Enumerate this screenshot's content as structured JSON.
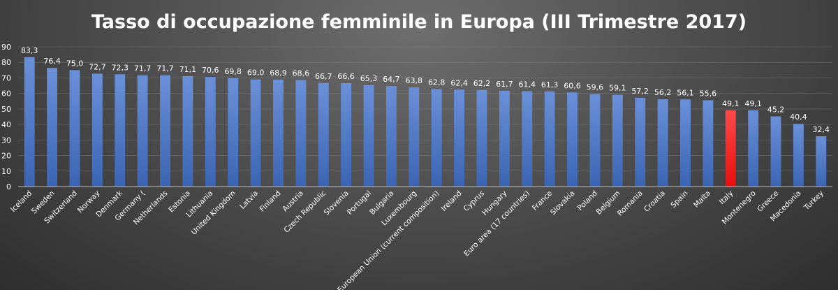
{
  "chart_data": {
    "type": "bar",
    "title": "Tasso di occupazione femminile in Europa (III Trimestre 2017)",
    "xlabel": "",
    "ylabel": "",
    "ylim": [
      0,
      90
    ],
    "yticks": [
      0,
      10,
      20,
      30,
      40,
      50,
      60,
      70,
      80,
      90
    ],
    "grid": true,
    "legend": "none",
    "categories": [
      "Iceland",
      "Sweden",
      "Switzerland",
      "Norway",
      "Denmark",
      "Germany (",
      "Netherlands",
      "Estonia",
      "Lithuania",
      "United Kingdom",
      "Latvia",
      "Finland",
      "Austria",
      "Czech Republic",
      "Slovenia",
      "Portugal",
      "Bulgaria",
      "Luxembourg",
      "European Union (current composition)",
      "Ireland",
      "Cyprus",
      "Hungary",
      "Euro area (17 countries)",
      "France",
      "Slovakia",
      "Poland",
      "Belgium",
      "Romania",
      "Croatia",
      "Spain",
      "Malta",
      "Italy",
      "Montenegro",
      "Greece",
      "Macedonia",
      "Turkey"
    ],
    "values": [
      83.3,
      76.4,
      75.0,
      72.7,
      72.3,
      71.7,
      71.7,
      71.1,
      70.6,
      69.8,
      69.0,
      68.9,
      68.6,
      66.7,
      66.6,
      65.3,
      64.7,
      63.8,
      62.8,
      62.4,
      62.2,
      61.7,
      61.4,
      61.3,
      60.6,
      59.6,
      59.1,
      57.2,
      56.2,
      56.1,
      55.6,
      49.1,
      49.1,
      45.2,
      40.4,
      32.4
    ],
    "value_labels": [
      "83,3",
      "76,4",
      "75,0",
      "72,7",
      "72,3",
      "71,7",
      "71,7",
      "71,1",
      "70,6",
      "69,8",
      "69,0",
      "68,9",
      "68,6",
      "66,7",
      "66,6",
      "65,3",
      "64,7",
      "63,8",
      "62,8",
      "62,4",
      "62,2",
      "61,7",
      "61,4",
      "61,3",
      "60,6",
      "59,6",
      "59,1",
      "57,2",
      "56,2",
      "56,1",
      "55,6",
      "49,1",
      "49,1",
      "45,2",
      "40,4",
      "32,4"
    ],
    "highlight_category": "Italy",
    "colors": {
      "bar": "#4472c4",
      "bar_light": "#6a90d8",
      "highlight": "#ff1a1a",
      "highlight_light": "#ff4a4a",
      "text": "#ffffff"
    }
  }
}
